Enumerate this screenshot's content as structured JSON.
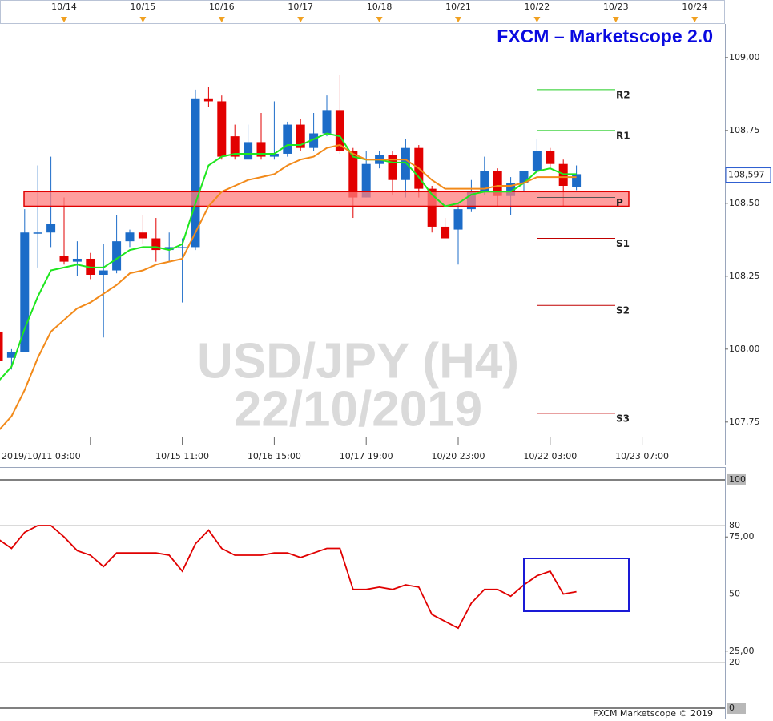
{
  "chart_data": [
    {
      "type": "candlestick",
      "title": "FXCM – Marketscope 2.0",
      "watermark": [
        "USD/JPY (H4)",
        "22/10/2019"
      ],
      "categories": [
        "2019/10/11 03:00",
        null,
        null,
        null,
        null,
        null,
        null,
        null,
        null,
        null,
        null,
        null,
        null,
        null,
        "10/15 11:00",
        null,
        null,
        null,
        null,
        null,
        null,
        "10/16 15:00",
        null,
        null,
        null,
        null,
        null,
        null,
        "10/17 19:00",
        null,
        null,
        null,
        null,
        null,
        null,
        "10/20 23:00",
        null,
        null,
        null,
        null,
        null,
        null,
        "10/22 03:00",
        null,
        null,
        null,
        null,
        null,
        null,
        "10/23 07:00",
        null,
        null,
        null,
        null,
        null,
        null
      ],
      "top_categories": [
        null,
        null,
        null,
        null,
        null,
        "10/14",
        null,
        null,
        null,
        null,
        null,
        "10/15",
        null,
        null,
        null,
        null,
        null,
        "10/16",
        null,
        null,
        null,
        null,
        null,
        "10/17",
        null,
        null,
        null,
        null,
        null,
        "10/18",
        null,
        null,
        null,
        null,
        null,
        "10/21",
        null,
        null,
        null,
        null,
        null,
        "10/22",
        null,
        null,
        null,
        null,
        null,
        "10/23",
        null,
        null,
        null,
        null,
        null,
        "10/24",
        null,
        null
      ],
      "open": [
        108.06,
        107.97,
        107.99,
        108.4,
        108.4,
        108.32,
        108.3,
        108.31,
        108.255,
        108.27,
        108.37,
        108.4,
        108.38,
        108.34,
        108.35,
        108.35,
        108.86,
        108.85,
        108.73,
        108.65,
        108.71,
        108.66,
        108.67,
        108.77,
        108.69,
        108.74,
        108.82,
        108.68,
        108.52,
        108.635,
        108.665,
        108.58,
        108.69,
        108.55,
        108.42,
        108.41,
        108.48,
        108.54,
        108.61,
        108.525,
        108.57,
        108.61,
        108.68,
        108.635,
        108.555,
        null,
        null,
        null,
        null,
        null,
        null,
        null,
        null,
        null,
        null,
        null
      ],
      "high": [
        108.07,
        108.0,
        108.48,
        108.63,
        108.66,
        108.52,
        108.37,
        108.33,
        108.36,
        108.46,
        108.41,
        108.46,
        108.45,
        108.4,
        108.38,
        108.89,
        108.9,
        108.87,
        108.77,
        108.77,
        108.81,
        108.85,
        108.78,
        108.79,
        108.81,
        108.87,
        108.94,
        108.69,
        108.68,
        108.68,
        108.68,
        108.72,
        108.7,
        108.56,
        108.45,
        108.5,
        108.58,
        108.66,
        108.62,
        108.59,
        108.61,
        108.72,
        108.69,
        108.65,
        108.63,
        null,
        null,
        null,
        null,
        null,
        null,
        null,
        null,
        null,
        null,
        null
      ],
      "low": [
        107.95,
        107.93,
        107.99,
        108.28,
        108.35,
        108.29,
        108.25,
        108.24,
        108.04,
        108.26,
        108.35,
        108.36,
        108.3,
        108.3,
        108.16,
        108.34,
        108.83,
        108.65,
        108.65,
        108.65,
        108.65,
        108.65,
        108.66,
        108.68,
        108.68,
        108.73,
        108.67,
        108.45,
        108.52,
        108.62,
        108.53,
        108.52,
        108.52,
        108.4,
        108.38,
        108.29,
        108.47,
        108.53,
        108.49,
        108.46,
        108.54,
        108.6,
        108.62,
        108.49,
        108.545,
        null,
        null,
        null,
        null,
        null,
        null,
        null,
        null,
        null,
        null,
        null
      ],
      "close": [
        107.96,
        107.99,
        108.4,
        108.4,
        108.43,
        108.3,
        108.31,
        108.255,
        108.27,
        108.37,
        108.4,
        108.38,
        108.34,
        108.35,
        108.35,
        108.86,
        108.85,
        108.66,
        108.66,
        108.71,
        108.66,
        108.67,
        108.77,
        108.69,
        108.74,
        108.82,
        108.68,
        108.52,
        108.635,
        108.665,
        108.58,
        108.69,
        108.55,
        108.42,
        108.38,
        108.48,
        108.54,
        108.61,
        108.525,
        108.57,
        108.61,
        108.68,
        108.635,
        108.56,
        108.6,
        null,
        null,
        null,
        null,
        null,
        null,
        null,
        null,
        null,
        null,
        null
      ],
      "up_color": "#1c6cc8",
      "down_color": "#e20000",
      "series": [
        {
          "color": "#1ee61e",
          "values": [
            107.89,
            107.94,
            108.07,
            108.18,
            108.27,
            108.28,
            108.29,
            108.28,
            108.28,
            108.31,
            108.34,
            108.35,
            108.35,
            108.34,
            108.36,
            108.5,
            108.63,
            108.66,
            108.67,
            108.67,
            108.67,
            108.67,
            108.7,
            108.7,
            108.72,
            108.74,
            108.73,
            108.66,
            108.65,
            108.65,
            108.64,
            108.64,
            108.59,
            108.53,
            108.49,
            108.5,
            108.53,
            108.54,
            108.54,
            108.54,
            108.57,
            108.61,
            108.62,
            108.6,
            108.6,
            null,
            null,
            null,
            null,
            null,
            null,
            null,
            null,
            null,
            null,
            null
          ]
        },
        {
          "color": "#f28a1a",
          "values": [
            107.72,
            107.77,
            107.86,
            107.97,
            108.06,
            108.1,
            108.14,
            108.16,
            108.19,
            108.22,
            108.26,
            108.27,
            108.29,
            108.3,
            108.31,
            108.4,
            108.49,
            108.54,
            108.56,
            108.58,
            108.59,
            108.6,
            108.63,
            108.65,
            108.66,
            108.69,
            108.7,
            108.67,
            108.65,
            108.65,
            108.65,
            108.65,
            108.62,
            108.58,
            108.55,
            108.55,
            108.55,
            108.55,
            108.56,
            108.56,
            108.57,
            108.59,
            108.59,
            108.59,
            108.59,
            null,
            null,
            null,
            null,
            null,
            null,
            null,
            null,
            null,
            null,
            null
          ]
        }
      ],
      "zone": {
        "range": [
          108.49,
          108.54
        ],
        "color": "#ff7d7d"
      },
      "pivots": [
        {
          "label": "R2",
          "value": 108.89,
          "color": "#22cc22"
        },
        {
          "label": "R1",
          "value": 108.75,
          "color": "#22cc22"
        },
        {
          "label": "P",
          "value": 108.52,
          "color": "#555555"
        },
        {
          "label": "S1",
          "value": 108.38,
          "color": "#c00000"
        },
        {
          "label": "S2",
          "value": 108.15,
          "color": "#c00000"
        },
        {
          "label": "S3",
          "value": 107.78,
          "color": "#c00000"
        }
      ],
      "last_price": {
        "value": 108.597,
        "label": "108,597"
      },
      "ylim": [
        107.7,
        109.115
      ],
      "yticks": [
        {
          "value": 109,
          "label": "109,00"
        },
        {
          "value": 108.75,
          "label": "108,75"
        },
        {
          "value": 108.5,
          "label": "108,50"
        },
        {
          "value": 108.25,
          "label": "108,25"
        },
        {
          "value": 108,
          "label": "108,00"
        },
        {
          "value": 107.75,
          "label": "107,75"
        }
      ]
    },
    {
      "type": "line",
      "color": "#e00000",
      "values": [
        74,
        70,
        77,
        80,
        80,
        75,
        69,
        67,
        62,
        68,
        68,
        68,
        68,
        67,
        60,
        72,
        78,
        70,
        67,
        67,
        67,
        68,
        68,
        66,
        68,
        70,
        70,
        52,
        52,
        53,
        52,
        54,
        53,
        41,
        38,
        35,
        46,
        52,
        52,
        49,
        54,
        58,
        60,
        50,
        51,
        null,
        null,
        null,
        null,
        null,
        null,
        null,
        null,
        null,
        null,
        null
      ],
      "ylim": [
        -2.1,
        105.6
      ],
      "yticks": [
        100,
        80,
        {
          "value": 75,
          "label": "75,00"
        },
        50,
        {
          "value": 25,
          "label": "25,00"
        },
        20,
        0
      ],
      "grid_lines": [
        "#000000",
        "#b4b4b4",
        null,
        "#000000",
        null,
        "#b4b4b4",
        "#000000"
      ],
      "footer": "FXCM Marketscope © 2019"
    }
  ]
}
